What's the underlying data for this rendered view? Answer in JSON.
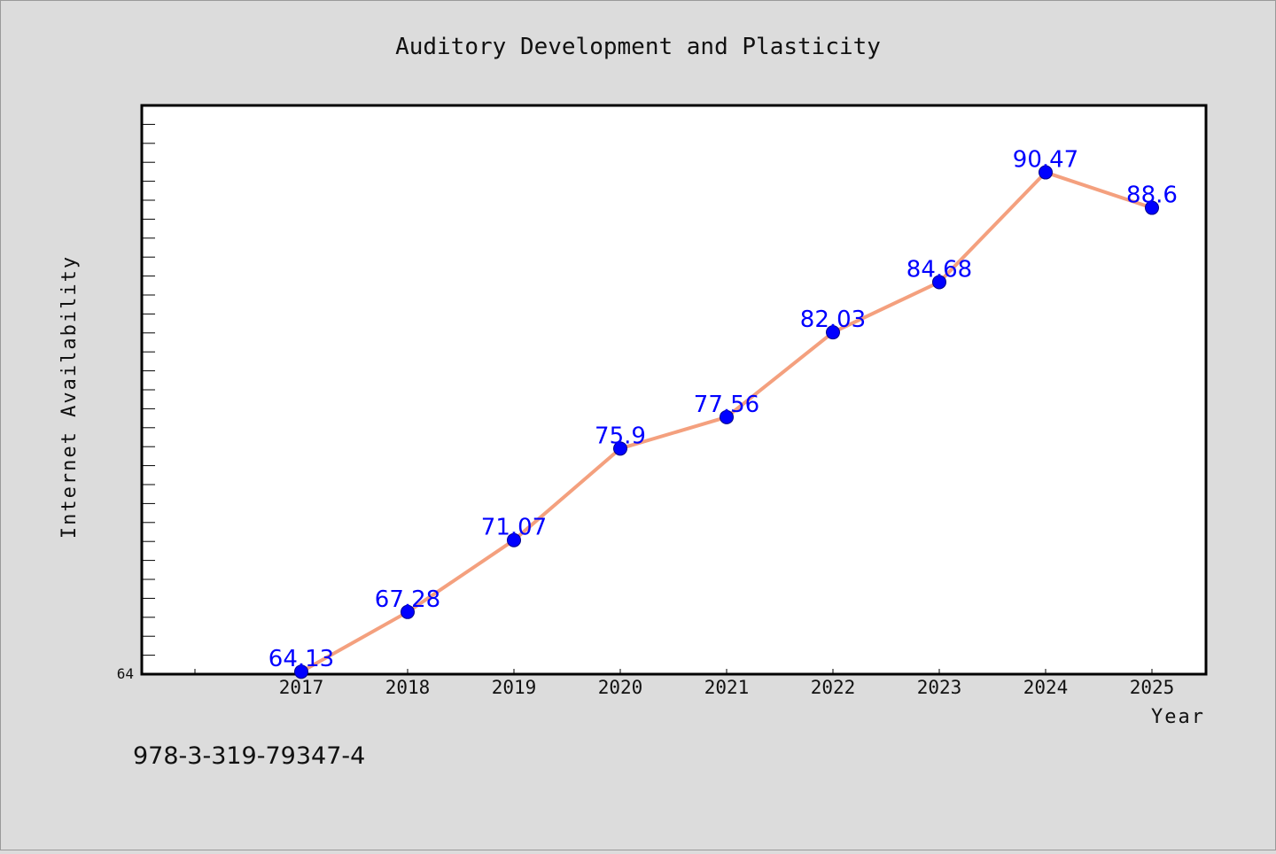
{
  "chart_data": {
    "type": "line",
    "title": "Auditory Development and Plasticity",
    "xlabel": "Year",
    "ylabel": "Internet Availability",
    "categories": [
      "2017",
      "2018",
      "2019",
      "2020",
      "2021",
      "2022",
      "2023",
      "2024",
      "2025"
    ],
    "series": [
      {
        "values": [
          64.13,
          67.28,
          71.07,
          75.9,
          77.56,
          82.03,
          84.68,
          90.47,
          88.6
        ],
        "labels": [
          "64.13",
          "67.28",
          "71.07",
          "75.9",
          "77.56",
          "82.03",
          "84.68",
          "90.47",
          "88.6"
        ],
        "line_color": "#f4a07e",
        "marker_color": "#0000ff"
      }
    ],
    "ylim": [
      64,
      94
    ],
    "y_tick_labels": [
      "64"
    ],
    "grid": false,
    "legend": "none"
  },
  "footer": {
    "isbn": "978-3-319-79347-4"
  },
  "colors": {
    "background": "#dcdcdc",
    "plot_background": "#ffffff",
    "axis": "#000000"
  }
}
